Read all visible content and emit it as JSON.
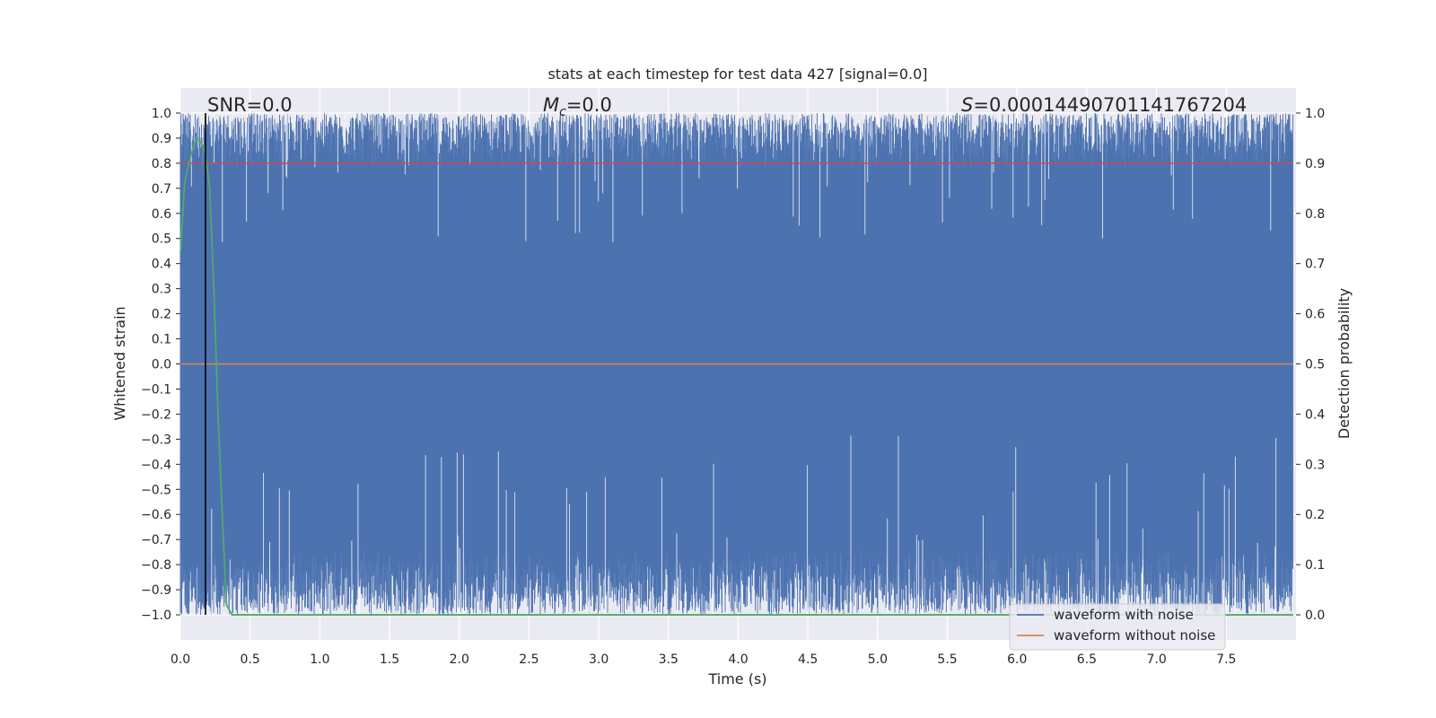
{
  "chart_data": {
    "type": "line",
    "title": "stats at each timestep for test data 427 [signal=0.0]",
    "xlabel": "Time (s)",
    "ylabel": "Whitened strain",
    "y2label": "Detection probability",
    "xlim": [
      0.0,
      8.0
    ],
    "ylim": [
      -1.1,
      1.1
    ],
    "y2lim": [
      -0.05,
      1.05
    ],
    "x_ticks": [
      "0.0",
      "0.5",
      "1.0",
      "1.5",
      "2.0",
      "2.5",
      "3.0",
      "3.5",
      "4.0",
      "4.5",
      "5.0",
      "5.5",
      "6.0",
      "6.5",
      "7.0",
      "7.5"
    ],
    "y_ticks": [
      "1.0",
      "0.9",
      "0.8",
      "0.7",
      "0.6",
      "0.5",
      "0.4",
      "0.3",
      "0.2",
      "0.1",
      "0.0",
      "−0.1",
      "−0.2",
      "−0.3",
      "−0.4",
      "−0.5",
      "−0.6",
      "−0.7",
      "−0.8",
      "−0.9",
      "−1.0"
    ],
    "y2_ticks": [
      "1.0",
      "0.9",
      "0.8",
      "0.7",
      "0.6",
      "0.5",
      "0.4",
      "0.3",
      "0.2",
      "0.1",
      "0.0"
    ],
    "annotations": {
      "snr": "SNR=0.0",
      "mc_symbol": "M",
      "mc_sub": "c",
      "mc_value": "=0.0",
      "s_symbol": "S",
      "s_value": "=0.00014490701141767204"
    },
    "legend": {
      "position": "lower-right",
      "entries": [
        "waveform with noise",
        "waveform without noise"
      ]
    },
    "series": [
      {
        "name": "waveform with noise",
        "color": "#4c72b0",
        "description": "dense whitened noise, amplitude mostly between about -0.95 and 0.95, spanning the full -1.0..1.0 range",
        "x_range": [
          0.0,
          7.98
        ],
        "y_range": [
          -1.0,
          1.0
        ]
      },
      {
        "name": "waveform without noise",
        "color": "#dd8452",
        "x": [
          0.0,
          7.98
        ],
        "y": [
          0.0,
          0.0
        ]
      },
      {
        "name": "detection probability",
        "axis": "right",
        "color": "#55a868",
        "x": [
          0.0,
          0.03,
          0.06,
          0.09,
          0.12,
          0.15,
          0.18,
          0.21,
          0.24,
          0.27,
          0.3,
          0.33,
          0.37,
          0.4,
          1.0,
          2.0,
          3.0,
          4.0,
          5.0,
          6.0,
          7.0,
          7.98
        ],
        "y": [
          0.72,
          0.86,
          0.9,
          0.93,
          0.95,
          0.94,
          0.92,
          0.85,
          0.65,
          0.4,
          0.2,
          0.02,
          0.0,
          0.0,
          0.0,
          0.0,
          0.0,
          0.0,
          0.0,
          0.0,
          0.0,
          0.0
        ]
      },
      {
        "name": "threshold",
        "axis": "right",
        "color": "#c44e52",
        "x": [
          0.0,
          7.98
        ],
        "y": [
          0.9,
          0.9
        ]
      },
      {
        "name": "marker",
        "type": "vline",
        "color": "#000000",
        "x": 0.18
      }
    ]
  }
}
